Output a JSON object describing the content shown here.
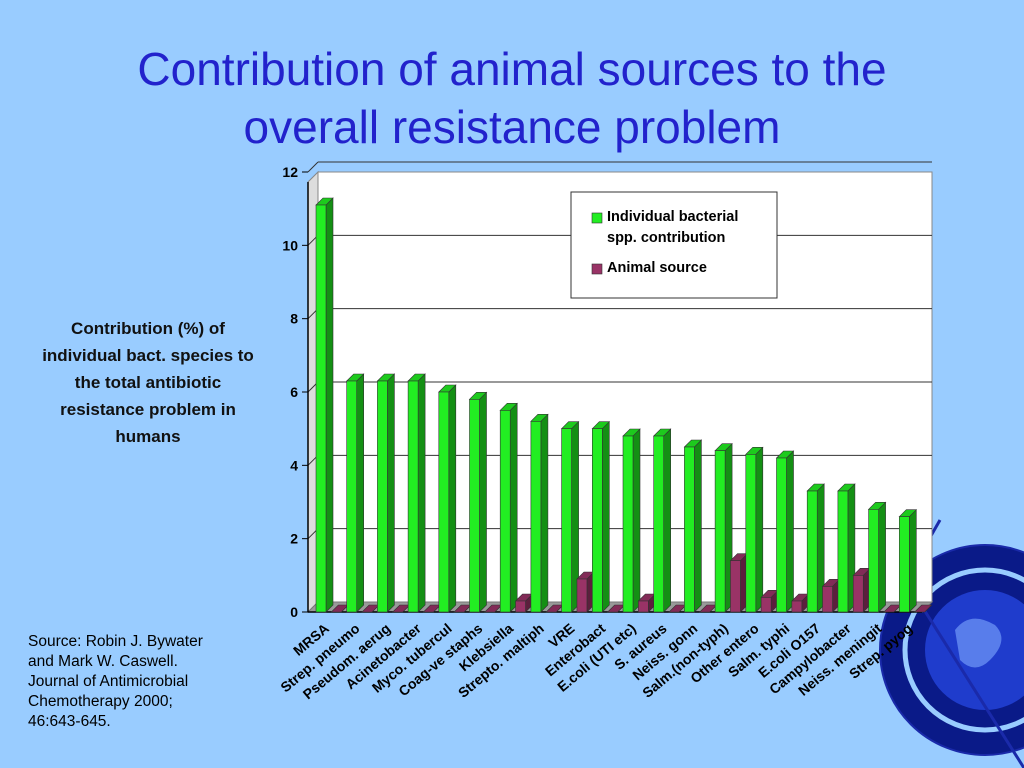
{
  "slide": {
    "title_line1": "Contribution of animal sources to the",
    "title_line2": "overall resistance problem",
    "ylabel_lines": [
      "Contribution (%) of",
      "individual bact. species to",
      "the total antibiotic",
      "resistance problem in",
      "humans"
    ],
    "source_lines": [
      "Source: Robin J. Bywater",
      "and Mark W. Caswell.",
      "Journal of Antimicrobial",
      "Chemotherapy 2000;",
      "46:643-645."
    ]
  },
  "chart_data": {
    "type": "bar",
    "ylim": [
      0,
      12
    ],
    "yticks": [
      "0",
      "2",
      "4",
      "6",
      "8",
      "10",
      "12"
    ],
    "grid": true,
    "legend_position": "top-right",
    "categories": [
      "MRSA",
      "Strep. pneumo",
      "Pseudom. aerug",
      "Acinetobacter",
      "Myco. tubercul",
      "Coag-ve staphs",
      "Klebsiella",
      "Strepto. maltiph",
      "VRE",
      "Enterobact",
      "E.coli  (UTI etc)",
      "S. aureus",
      "Neiss. gonn",
      "Salm.(non-typh)",
      "Other entero",
      "Salm. typhi",
      "E.coli O157",
      "Campylobacter",
      "Neiss. meningit",
      "Strep. pyog"
    ],
    "series": [
      {
        "name": "Individual bacterial spp. contribution",
        "color": "#22ee22",
        "values": [
          11.1,
          6.3,
          6.3,
          6.3,
          6.0,
          5.8,
          5.5,
          5.2,
          5.0,
          5.0,
          4.8,
          4.8,
          4.5,
          4.4,
          4.3,
          4.2,
          3.3,
          3.3,
          2.8,
          2.6
        ]
      },
      {
        "name": "Animal source",
        "color": "#993366",
        "values": [
          0,
          0,
          0,
          0,
          0,
          0,
          0.3,
          0,
          0.9,
          0,
          0.3,
          0,
          0,
          1.4,
          0.4,
          0.3,
          0.7,
          1.0,
          0,
          0
        ]
      }
    ],
    "legend": [
      "Individual bacterial spp. contribution",
      "Animal source"
    ],
    "legend_lines": [
      [
        "Individual bacterial",
        "spp. contribution"
      ],
      [
        "Animal source"
      ]
    ]
  },
  "decoration": {
    "globe": "globe-icon"
  }
}
